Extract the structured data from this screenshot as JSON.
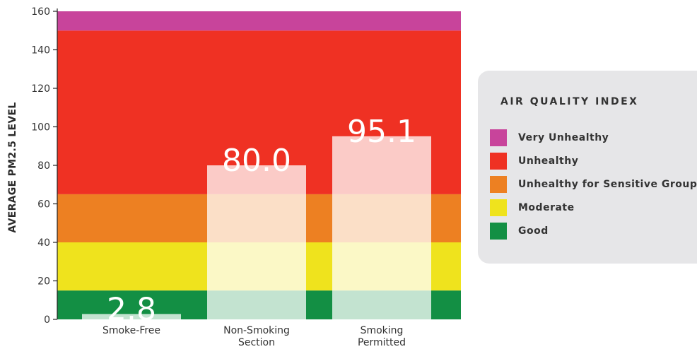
{
  "chart_data": {
    "type": "bar",
    "title": "",
    "ylabel": "AVERAGE PM2.5 LEVEL",
    "xlabel": "",
    "ylim": [
      0,
      160
    ],
    "yticks": [
      0,
      20,
      40,
      60,
      80,
      100,
      120,
      140,
      160
    ],
    "categories": [
      [
        "Smoke-Free"
      ],
      [
        "Non-Smoking",
        "Section"
      ],
      [
        "Smoking",
        "Permitted"
      ]
    ],
    "values": [
      2.8,
      80.0,
      95.1
    ],
    "data_labels": [
      "2.8",
      "80.0",
      "95.1"
    ],
    "bar_color": "#ffffff",
    "bar_opacity": 0.75,
    "background_bands": [
      {
        "label": "Good",
        "from": 0,
        "to": 15,
        "color": "#138f44"
      },
      {
        "label": "Moderate",
        "from": 15,
        "to": 40,
        "color": "#efe31d"
      },
      {
        "label": "Unhealthy for Sensitive Groups",
        "from": 40,
        "to": 65,
        "color": "#ed8022"
      },
      {
        "label": "Unhealthy",
        "from": 65,
        "to": 150,
        "color": "#ef3123"
      },
      {
        "label": "Very Unhealthy",
        "from": 150,
        "to": 160,
        "color": "#c8449b"
      }
    ],
    "legend": {
      "title": "AIR QUALITY INDEX",
      "placement": "right",
      "items": [
        {
          "label": "Very Unhealthy",
          "color": "#c8449b"
        },
        {
          "label": "Unhealthy",
          "color": "#ef3123"
        },
        {
          "label": "Unhealthy for Sensitive Groups",
          "color": "#ed8022"
        },
        {
          "label": "Moderate",
          "color": "#efe31d"
        },
        {
          "label": "Good",
          "color": "#138f44"
        }
      ]
    }
  }
}
